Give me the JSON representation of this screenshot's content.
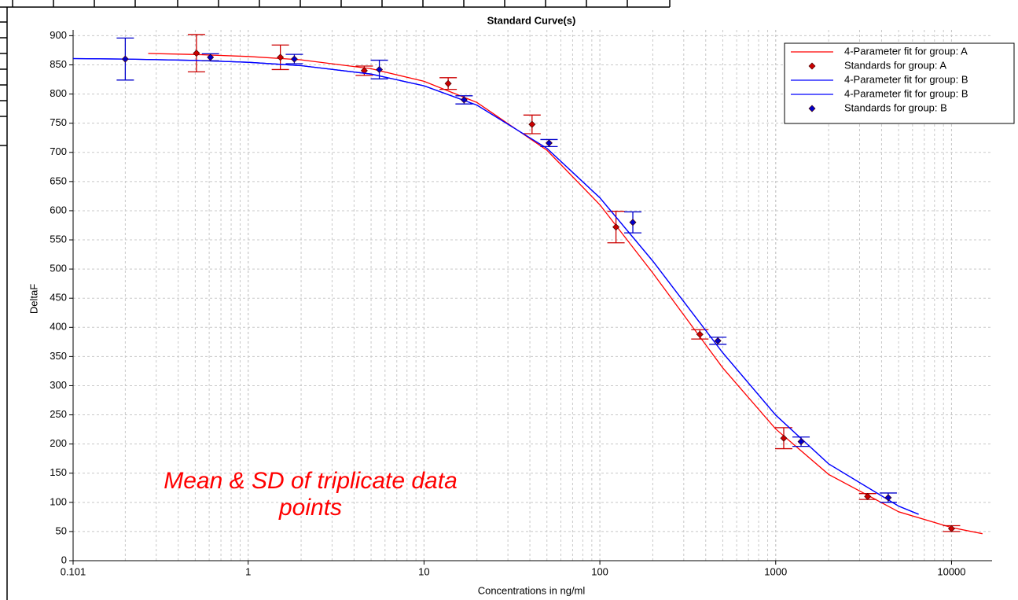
{
  "chart_data": {
    "type": "line",
    "title": "Standard Curve(s)",
    "x_label": "Concentrations in ng/ml",
    "y_label": "DeltaF",
    "annotation": [
      "Mean & SD of triplicate data",
      "points"
    ],
    "annotation_color": "#ff0000",
    "x_log": true,
    "grid": true,
    "xlim": [
      0.101,
      17000
    ],
    "xticks": [
      0.101,
      1,
      10,
      100,
      1000,
      10000
    ],
    "ylim": [
      0,
      910
    ],
    "yticks": [
      0,
      50,
      100,
      150,
      200,
      250,
      300,
      350,
      400,
      450,
      500,
      550,
      600,
      650,
      700,
      750,
      800,
      850,
      900
    ],
    "legend": "upper right",
    "series": [
      {
        "name": "4-Parameter fit for group: A",
        "mode": "line",
        "color": "#ff0000",
        "x": [
          0.27,
          0.5,
          1,
          2,
          5,
          10,
          20,
          50,
          100,
          200,
          500,
          1000,
          2000,
          5000,
          10000,
          15000
        ],
        "values": [
          869.5,
          867.8,
          864.5,
          858.6,
          843.4,
          821.8,
          785.5,
          703.8,
          610.2,
          493.3,
          330.5,
          225.7,
          147.9,
          83.9,
          56.7,
          46.3
        ]
      },
      {
        "name": "Standards for group: A",
        "mode": "points",
        "color": "#cc0000",
        "x": [
          0.508,
          1.524,
          4.572,
          13.72,
          41.15,
          123.5,
          370.4,
          1111,
          3333,
          10000
        ],
        "values": [
          870,
          863,
          840,
          818,
          748,
          572,
          388,
          210,
          110,
          55
        ],
        "errors": [
          32,
          21,
          8,
          10,
          16,
          27,
          8,
          18,
          5,
          5
        ]
      },
      {
        "name": "4-Parameter fit for group: B",
        "mode": "line",
        "color": "#0000ff",
        "x": [
          0.101,
          0.2,
          0.5,
          1,
          2,
          5,
          10,
          20,
          50,
          100,
          200,
          500,
          1000,
          2000,
          5000,
          6500
        ],
        "values": [
          860.8,
          860.0,
          857.7,
          854.4,
          848.7,
          834.2,
          814.2,
          781.0,
          707.0,
          622.2,
          513.8,
          356.5,
          249.5,
          166.0,
          93.6,
          79.6
        ]
      },
      {
        "name": "4-Parameter fit for group: B",
        "mode": "line",
        "color": "#0000ff",
        "x": [
          0.101,
          0.2,
          0.5,
          1,
          2,
          5,
          10,
          20,
          50,
          100,
          200,
          500,
          1000,
          2000,
          5000,
          6500
        ],
        "values": [
          860.8,
          860.0,
          857.7,
          854.4,
          848.7,
          834.2,
          814.2,
          781.0,
          707.0,
          622.2,
          513.8,
          356.5,
          249.5,
          166.0,
          93.6,
          79.6
        ]
      },
      {
        "name": "Standards for group: B",
        "mode": "points",
        "color": "#0000cc",
        "x": [
          0.2,
          0.61,
          1.83,
          5.57,
          16.9,
          51.4,
          154,
          469,
          1394,
          4365
        ],
        "values": [
          860,
          863,
          860,
          842,
          790,
          716,
          580,
          377,
          204,
          108
        ],
        "errors": [
          36,
          6,
          8,
          16,
          7,
          6,
          18,
          6,
          8,
          8
        ]
      }
    ]
  }
}
